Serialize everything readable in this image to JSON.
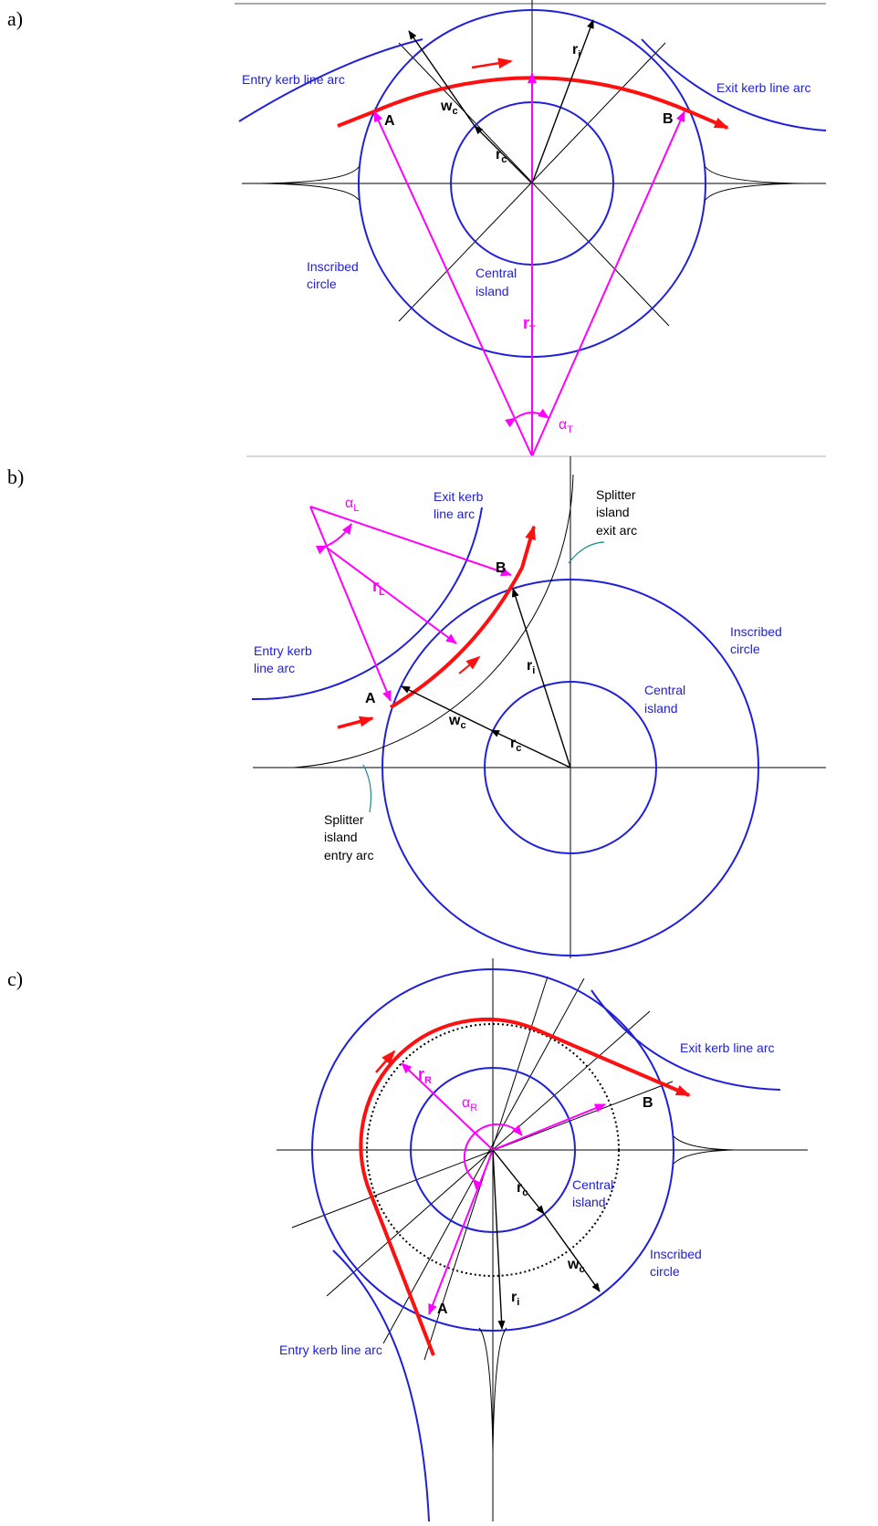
{
  "panels": [
    {
      "label": "a)",
      "entry_kerb": "Entry kerb line arc",
      "exit_kerb": "Exit kerb line arc",
      "point_a": "A",
      "point_b": "B",
      "w_c": {
        "main": "w",
        "sub": "c"
      },
      "r_i": {
        "main": "r",
        "sub": "i"
      },
      "r_c": {
        "main": "r",
        "sub": "c"
      },
      "inscribed": [
        "Inscribed",
        "circle"
      ],
      "central": [
        "Central",
        "island"
      ],
      "r_t": {
        "main": "r",
        "sub": "T"
      },
      "alpha_t": {
        "main": "α",
        "sub": "T"
      }
    },
    {
      "label": "b)",
      "exit_kerb": [
        "Exit kerb",
        "line arc"
      ],
      "entry_kerb": [
        "Entry kerb",
        "line arc"
      ],
      "splitter_exit": [
        "Splitter",
        "island",
        "exit arc"
      ],
      "splitter_entry": [
        "Splitter",
        "island",
        "entry arc"
      ],
      "inscribed": [
        "Inscribed",
        "circle"
      ],
      "central": [
        "Central",
        "island"
      ],
      "point_a": "A",
      "point_b": "B",
      "w_c": {
        "main": "w",
        "sub": "c"
      },
      "r_i": {
        "main": "r",
        "sub": "i"
      },
      "r_c": {
        "main": "r",
        "sub": "c"
      },
      "r_l": {
        "main": "r",
        "sub": "L"
      },
      "alpha_l": {
        "main": "α",
        "sub": "L"
      }
    },
    {
      "label": "c)",
      "entry_kerb": "Entry kerb line arc",
      "exit_kerb": "Exit kerb line arc",
      "point_a": "A",
      "point_b": "B",
      "inscribed": [
        "Inscribed",
        "circle"
      ],
      "central": [
        "Central",
        "island"
      ],
      "r_c": {
        "main": "r",
        "sub": "c"
      },
      "r_i": {
        "main": "r",
        "sub": "i"
      },
      "w_c": {
        "main": "w",
        "sub": "c"
      },
      "r_r": {
        "main": "r",
        "sub": "R"
      },
      "alpha_r": {
        "main": "α",
        "sub": "R"
      }
    }
  ]
}
